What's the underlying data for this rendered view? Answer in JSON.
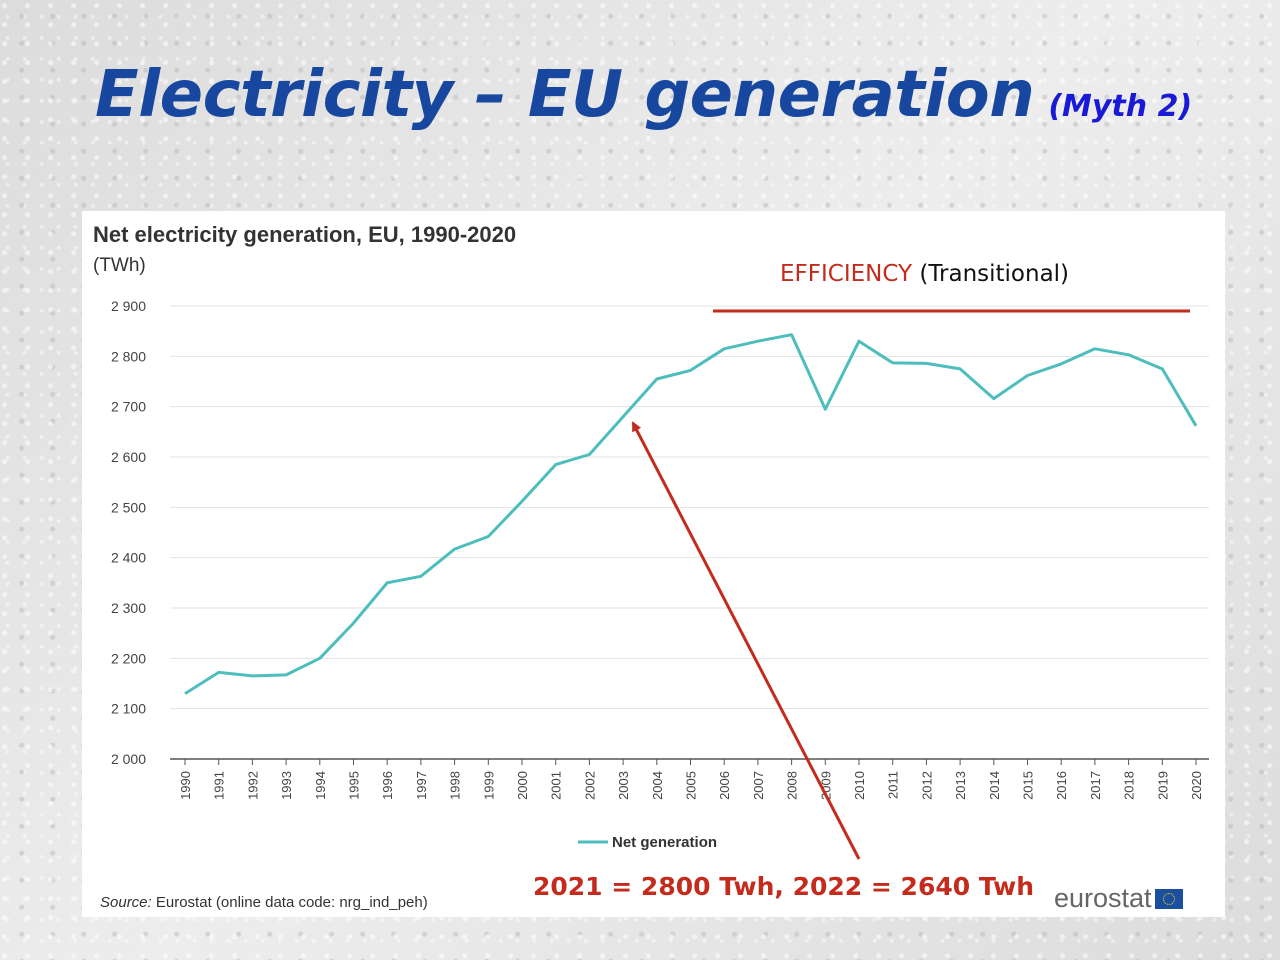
{
  "slide": {
    "title": "Electricity – EU generation",
    "subtitle": "(Myth 2)"
  },
  "colors": {
    "title": "#17479e",
    "subtitle": "#1a1ad6",
    "series": "#4dbdbd",
    "annotation": "#c42b1c"
  },
  "annotations": {
    "efficiency_label": "EFFICIENCY",
    "efficiency_note": "(Transitional)",
    "footnote": "2021 = 2800 Twh, 2022 = 2640 Twh"
  },
  "source": {
    "label": "Source:",
    "text": "Eurostat (online data code: nrg_ind_peh)"
  },
  "logo": {
    "text": "eurostat",
    "icon": "eu-flag-icon"
  },
  "chart_data": {
    "type": "line",
    "title": "Net electricity generation, EU, 1990-2020",
    "unit": "(TWh)",
    "x": [
      "1990",
      "1991",
      "1992",
      "1993",
      "1994",
      "1995",
      "1996",
      "1997",
      "1998",
      "1999",
      "2000",
      "2001",
      "2002",
      "2003",
      "2004",
      "2005",
      "2006",
      "2007",
      "2008",
      "2009",
      "2010",
      "2011",
      "2012",
      "2013",
      "2014",
      "2015",
      "2016",
      "2017",
      "2018",
      "2019",
      "2020"
    ],
    "series": [
      {
        "name": "Net generation",
        "values": [
          2130,
          2172,
          2165,
          2167,
          2200,
          2270,
          2350,
          2363,
          2417,
          2442,
          2512,
          2585,
          2605,
          2680,
          2755,
          2772,
          2815,
          2830,
          2843,
          2695,
          2830,
          2787,
          2786,
          2775,
          2716,
          2762,
          2785,
          2815,
          2803,
          2775,
          2662
        ]
      }
    ],
    "yticks": [
      "2 000",
      "2 100",
      "2 200",
      "2 300",
      "2 400",
      "2 500",
      "2 600",
      "2 700",
      "2 800",
      "2 900"
    ],
    "ylim": [
      2000,
      2900
    ],
    "grid": true,
    "legend": "bottom-center"
  }
}
